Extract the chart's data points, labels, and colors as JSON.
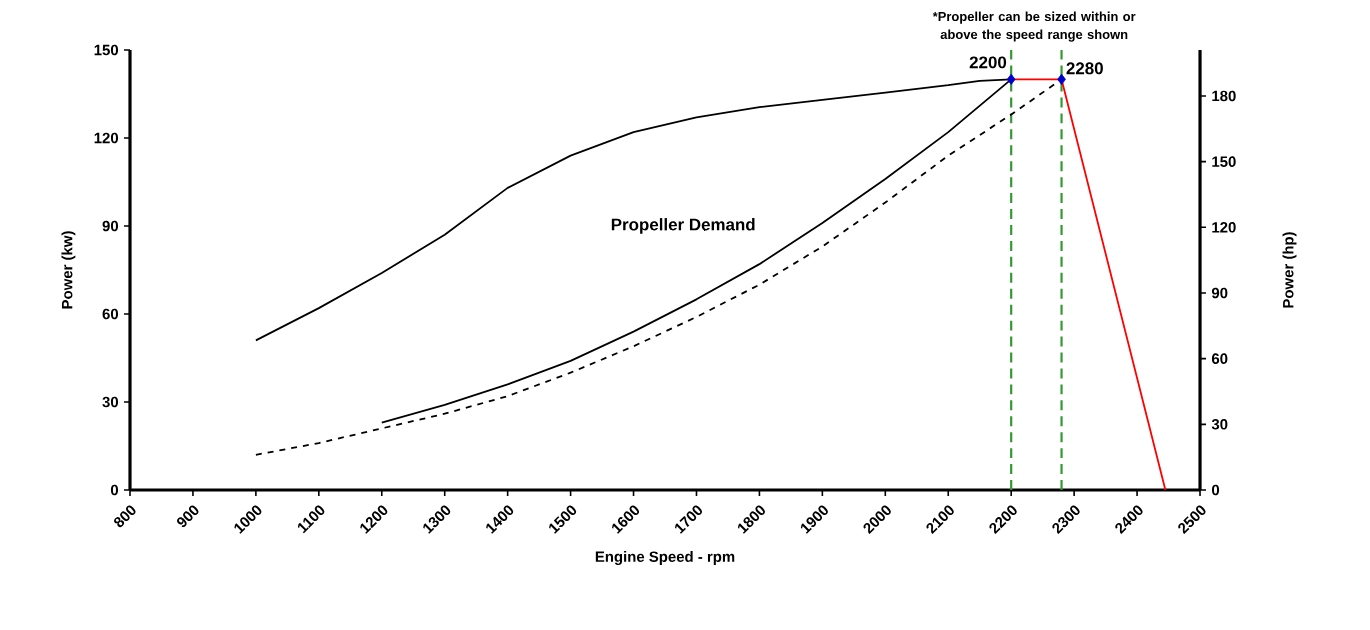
{
  "chart_data": {
    "type": "line",
    "xlabel": "Engine Speed - rpm",
    "ylabel": "Power (kw)",
    "y2label": "Power (hp)",
    "xlim": [
      800,
      2500
    ],
    "xticks": [
      800,
      900,
      1000,
      1100,
      1200,
      1300,
      1400,
      1500,
      1600,
      1700,
      1800,
      1900,
      2000,
      2100,
      2200,
      2300,
      2400,
      2500
    ],
    "ylim": [
      0,
      150
    ],
    "yticks": [
      0,
      30,
      60,
      90,
      120,
      150
    ],
    "y2lim": [
      0,
      201
    ],
    "y2ticks": [
      0,
      30,
      60,
      90,
      120,
      150,
      180
    ],
    "grid": false,
    "series": [
      {
        "color": "#000000",
        "line_style": "solid",
        "x": [
          1000,
          1100,
          1200,
          1300,
          1400,
          1500,
          1600,
          1700,
          1800,
          1900,
          2000,
          2100,
          2150,
          2200
        ],
        "values": [
          51,
          62,
          74,
          87,
          103,
          114,
          122,
          127,
          130.5,
          133,
          135.5,
          138,
          139.5,
          140
        ]
      },
      {
        "color": "#000000",
        "line_style": "solid",
        "x": [
          1200,
          1300,
          1400,
          1500,
          1600,
          1700,
          1800,
          1900,
          2000,
          2100,
          2200
        ],
        "values": [
          23,
          29,
          36,
          44,
          54,
          65,
          77,
          91,
          106,
          122,
          140
        ]
      },
      {
        "color": "#000000",
        "line_style": "dashed",
        "x": [
          1000,
          1100,
          1200,
          1300,
          1400,
          1500,
          1600,
          1700,
          1800,
          1900,
          2000,
          2100,
          2200,
          2280
        ],
        "values": [
          12,
          16,
          21,
          26,
          32,
          40,
          49,
          59,
          70,
          83,
          98,
          114,
          128,
          140
        ]
      },
      {
        "color": "#ff0000",
        "line_style": "solid",
        "x": [
          2200,
          2280,
          2445
        ],
        "values": [
          140,
          140,
          0
        ]
      },
      {
        "type": "scatter",
        "marker": "diamond",
        "color": "#0000cc",
        "x": [
          2200,
          2280
        ],
        "values": [
          140,
          140
        ]
      }
    ],
    "ref_lines": [
      {
        "axis": "x",
        "value": 2200,
        "label": "2200",
        "color": "#339933",
        "line_style": "dashed"
      },
      {
        "axis": "x",
        "value": 2280,
        "label": "2280",
        "color": "#339933",
        "line_style": "dashed"
      }
    ],
    "annotations": [
      "Propeller Demand",
      "*Propeller can be sized within or above the speed range shown"
    ]
  }
}
